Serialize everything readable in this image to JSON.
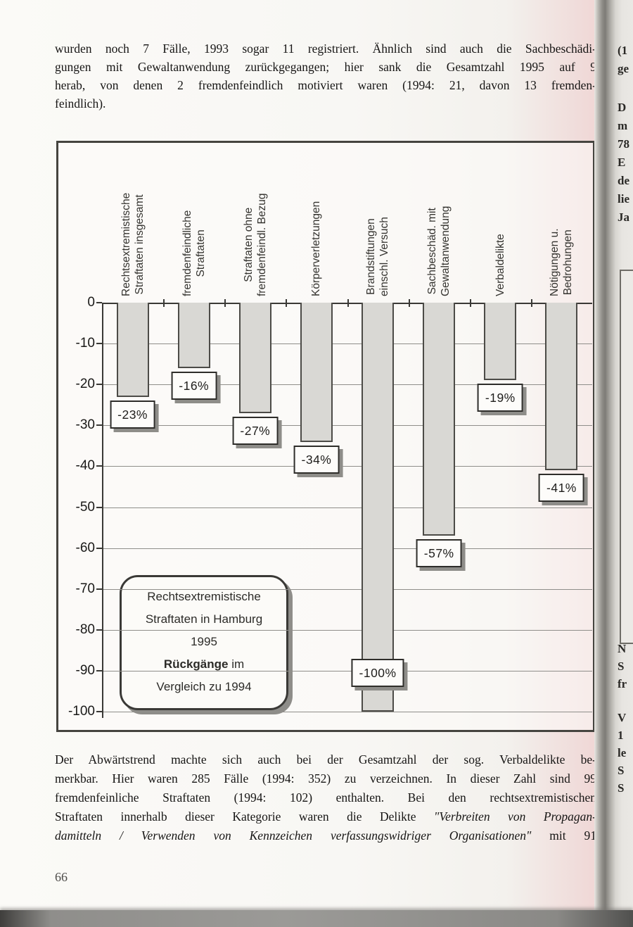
{
  "page": {
    "top_paragraph_lines": [
      "wurden noch 7 Fälle, 1993 sogar 11 registriert. Ähnlich sind auch die Sachbeschädi-",
      "gungen mit Gewaltanwendung zurückgegangen; hier sank die Gesamtzahl 1995 auf 9",
      "herab, von denen 2 fremdenfeindlich motiviert waren (1994: 21, davon 13 fremden-",
      "feindlich)."
    ],
    "bottom_paragraph_lines": [
      {
        "t": "Der Abwärtstrend machte sich auch bei der Gesamtzahl der sog. Verbaldelikte be-"
      },
      {
        "t": "merkbar. Hier waren 285 Fälle (1994: 352) zu verzeichnen. In dieser Zahl sind 99"
      },
      {
        "t": "fremdenfeinliche Straftaten (1994: 102) enthalten. Bei den rechtsextremistischen"
      },
      {
        "t": "Straftaten innerhalb dieser Kategorie waren die Delikte ",
        "i": "\"Verbreiten von Propagan-"
      },
      {
        "i": "damitteln / Verwenden von Kennzeichen verfassungswidriger Organisationen\"",
        "t2": " mit 91"
      }
    ],
    "page_number": "66"
  },
  "chart_data": {
    "type": "bar",
    "title": "Rechtsextremistische Straftaten in Hamburg 1995 – Rückgänge im Vergleich zu 1994",
    "categories": [
      [
        "Rechtsextremistische",
        "Straftaten insgesamt"
      ],
      [
        "fremdenfeindliche",
        "Straftaten"
      ],
      [
        "Straftaten ohne",
        "fremdenfeindl. Bezug"
      ],
      [
        "Körperverletzungen"
      ],
      [
        "Brandstiftungen",
        "einschl. Versuch"
      ],
      [
        "Sachbeschäd. mit",
        "Gewaltanwendung"
      ],
      [
        "Verbaldelikte"
      ],
      [
        "Nötigungen u.",
        "Bedrohungen"
      ]
    ],
    "values": [
      -23,
      -16,
      -27,
      -34,
      -100,
      -57,
      -19,
      -41
    ],
    "data_labels": [
      "-23%",
      "-16%",
      "-27%",
      "-34%",
      "-100%",
      "-57%",
      "-19%",
      "-41%"
    ],
    "unit": "%",
    "xlabel": "",
    "ylabel": "",
    "ylim": [
      -100,
      0
    ],
    "yticks": [
      0,
      -10,
      -20,
      -30,
      -40,
      -50,
      -60,
      -70,
      -80,
      -90,
      -100
    ],
    "grid": true,
    "legend": "none",
    "annotation": {
      "line1": "Rechtsextremistische",
      "line2": "Straftaten in Hamburg",
      "line3": "1995",
      "line4_bold": "Rückgänge",
      "line4_rest": " im",
      "line5": "Vergleich zu 1994"
    },
    "bar_fill": "#d9d8d4",
    "bar_border": "#4c4b47",
    "label_box_bg": "#fdfcfa",
    "label_box_shadow": "#8e8d89"
  },
  "adjacent_page": {
    "top_fragments": [
      "(1",
      "ge",
      "D",
      "m",
      "78",
      "E",
      "de",
      "lie",
      "Ja"
    ],
    "bottom_fragments": [
      "N",
      "S",
      "fr",
      "V",
      "1",
      "le",
      "S",
      "S"
    ]
  }
}
